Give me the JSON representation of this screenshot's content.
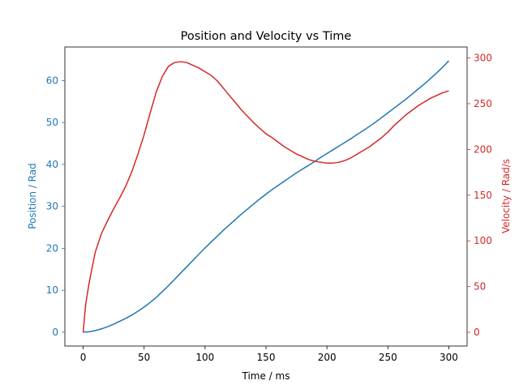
{
  "chart_data": {
    "type": "line",
    "title": "Position and Velocity vs Time",
    "xlabel": "Time / ms",
    "ylabel_left": "Position / Rad",
    "ylabel_right": "Velocity / Rad/s",
    "xlim": [
      -15,
      315
    ],
    "ylim_left": [
      -3.3,
      68
    ],
    "ylim_right": [
      -15,
      312
    ],
    "xticks": [
      0,
      50,
      100,
      150,
      200,
      250,
      300
    ],
    "yticks_left": [
      0,
      10,
      20,
      30,
      40,
      50,
      60
    ],
    "yticks_right": [
      0,
      50,
      100,
      150,
      200,
      250,
      300
    ],
    "grid": false,
    "colors": {
      "position": "#1f77b4",
      "velocity": "#d62728"
    },
    "series": [
      {
        "key": "position",
        "axis": "left",
        "x": [
          0,
          5,
          10,
          15,
          20,
          25,
          30,
          35,
          40,
          45,
          50,
          55,
          60,
          65,
          70,
          75,
          80,
          85,
          90,
          95,
          100,
          105,
          110,
          115,
          120,
          125,
          130,
          135,
          140,
          145,
          150,
          155,
          160,
          165,
          170,
          175,
          180,
          185,
          190,
          195,
          200,
          205,
          210,
          215,
          220,
          225,
          230,
          235,
          240,
          245,
          250,
          255,
          260,
          265,
          270,
          275,
          280,
          285,
          290,
          295,
          300
        ],
        "y": [
          0,
          0.1,
          0.4,
          0.8,
          1.3,
          1.9,
          2.6,
          3.3,
          4.1,
          5.0,
          6.0,
          7.1,
          8.3,
          9.7,
          11.1,
          12.6,
          14.1,
          15.6,
          17.1,
          18.6,
          20.1,
          21.5,
          22.9,
          24.3,
          25.6,
          26.9,
          28.2,
          29.4,
          30.6,
          31.8,
          32.9,
          34.0,
          35.0,
          36.0,
          37.0,
          38.0,
          38.9,
          39.8,
          40.7,
          41.7,
          42.6,
          43.5,
          44.4,
          45.3,
          46.2,
          47.2,
          48.1,
          49.1,
          50.1,
          51.2,
          52.3,
          53.4,
          54.5,
          55.6,
          56.8,
          58.0,
          59.2,
          60.5,
          61.8,
          63.2,
          64.7
        ]
      },
      {
        "key": "velocity",
        "axis": "right",
        "x": [
          0,
          2,
          5,
          10,
          15,
          20,
          25,
          30,
          35,
          40,
          45,
          50,
          55,
          60,
          65,
          70,
          75,
          80,
          85,
          90,
          95,
          100,
          105,
          110,
          115,
          120,
          125,
          130,
          135,
          140,
          145,
          150,
          155,
          160,
          165,
          170,
          175,
          180,
          185,
          190,
          195,
          200,
          205,
          210,
          215,
          220,
          225,
          230,
          235,
          240,
          245,
          250,
          255,
          260,
          265,
          270,
          275,
          280,
          285,
          290,
          295,
          300
        ],
        "y": [
          0,
          30,
          55,
          88,
          108,
          122,
          135,
          147,
          160,
          176,
          195,
          216,
          240,
          263,
          280,
          291,
          295,
          296,
          295,
          292,
          289,
          285,
          281,
          275,
          267,
          259,
          251,
          243,
          236,
          229,
          223,
          217,
          213,
          208,
          203,
          199,
          195,
          192,
          189,
          187,
          186,
          185,
          185,
          186,
          188,
          191,
          195,
          199,
          203,
          208,
          213,
          219,
          226,
          232,
          238,
          243,
          248,
          252,
          256,
          259,
          262,
          264
        ]
      }
    ]
  }
}
